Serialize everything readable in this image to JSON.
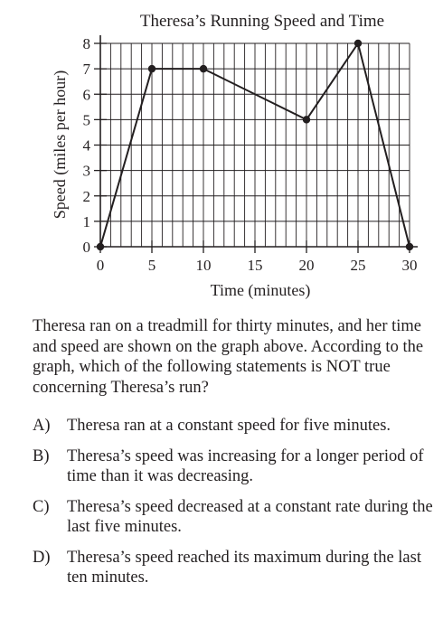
{
  "chart_data": {
    "type": "line",
    "title": "Theresa’s Running Speed and Time",
    "xlabel": "Time (minutes)",
    "ylabel": "Speed (miles per hour)",
    "x_ticks": [
      0,
      5,
      10,
      15,
      20,
      25,
      30
    ],
    "y_ticks": [
      0,
      1,
      2,
      3,
      4,
      5,
      6,
      7,
      8
    ],
    "xlim": [
      0,
      30
    ],
    "ylim": [
      0,
      8
    ],
    "grid": true,
    "series": [
      {
        "x": [
          0,
          5,
          10,
          20,
          25,
          30
        ],
        "y": [
          0,
          7,
          7,
          5,
          8,
          0
        ]
      }
    ]
  },
  "question": {
    "text": "Theresa ran on a treadmill for thirty minutes, and her time and speed are shown on the graph above. According to the graph, which of the following statements is NOT true concerning Theresa’s run?",
    "choices": [
      {
        "letter": "A)",
        "text": "Theresa ran at a constant speed for five minutes."
      },
      {
        "letter": "B)",
        "text": "Theresa’s speed was increasing for a longer period of time than it was decreasing."
      },
      {
        "letter": "C)",
        "text": "Theresa’s speed decreased at a constant rate during the last five minutes."
      },
      {
        "letter": "D)",
        "text": "Theresa’s speed reached its maximum during the last ten minutes."
      }
    ]
  }
}
